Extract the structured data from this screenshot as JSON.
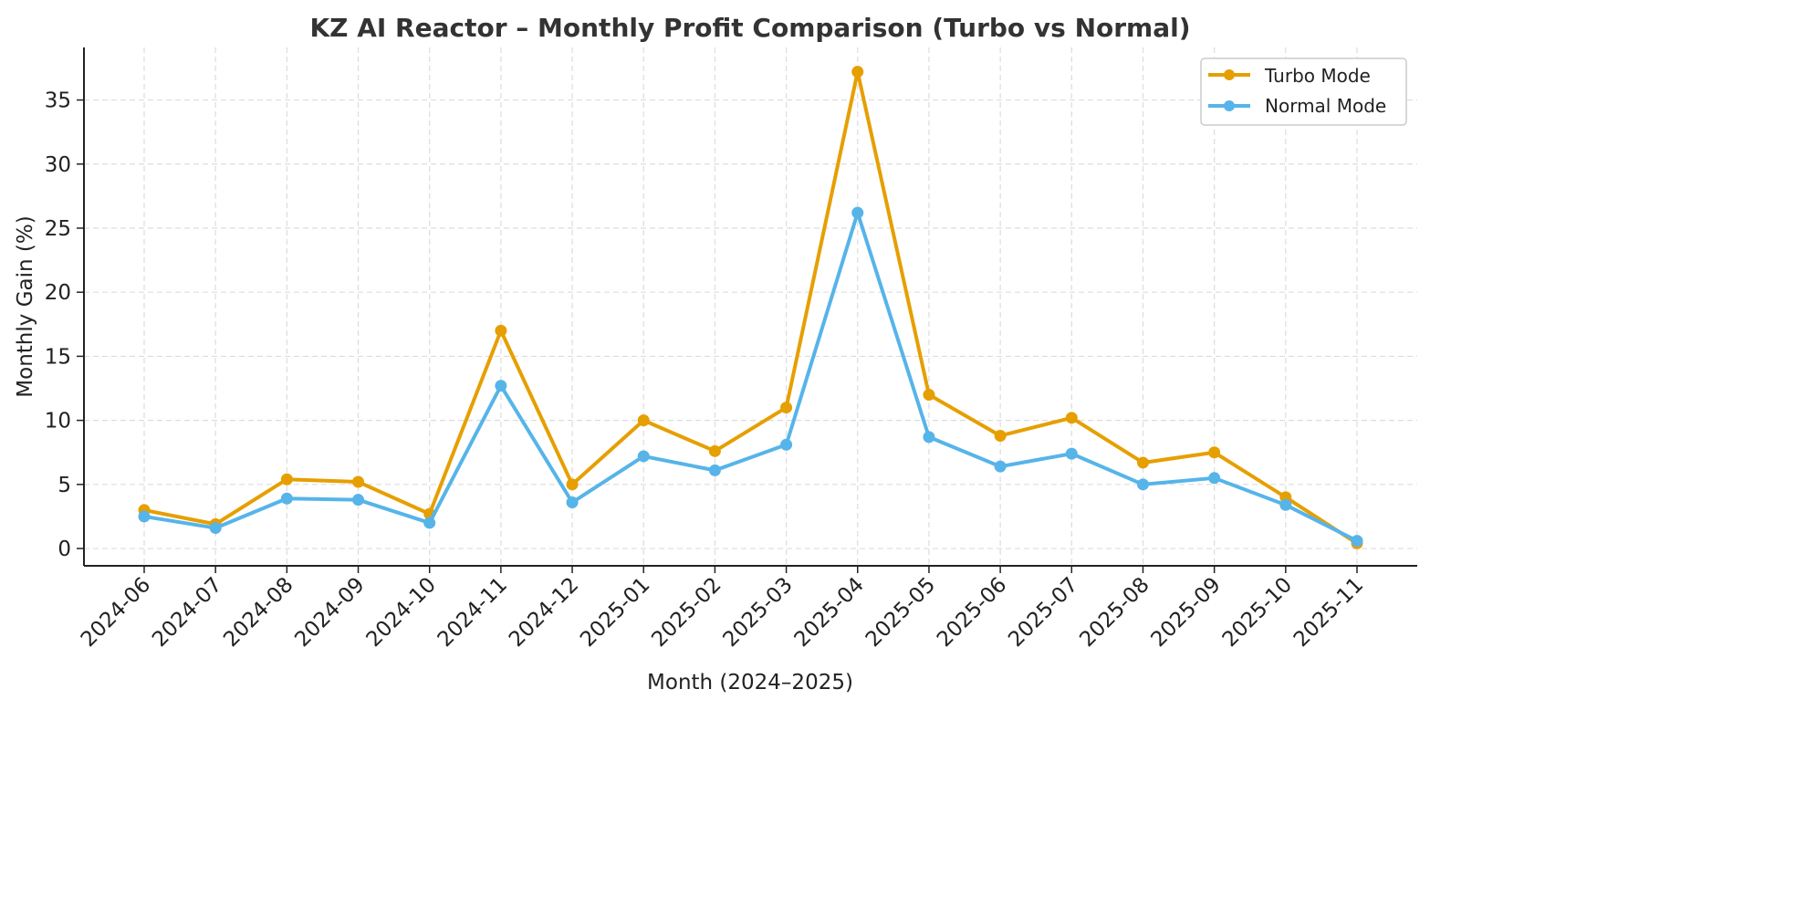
{
  "chart_data": {
    "type": "line",
    "title": "KZ AI Reactor – Monthly Profit Comparison (Turbo vs Normal)",
    "xlabel": "Month (2024–2025)",
    "ylabel": "Monthly Gain (%)",
    "categories": [
      "2024-06",
      "2024-07",
      "2024-08",
      "2024-09",
      "2024-10",
      "2024-11",
      "2024-12",
      "2025-01",
      "2025-02",
      "2025-03",
      "2025-04",
      "2025-05",
      "2025-06",
      "2025-07",
      "2025-08",
      "2025-09",
      "2025-10",
      "2025-11"
    ],
    "series": [
      {
        "name": "Turbo Mode",
        "color": "#E69F00",
        "values": [
          3.0,
          1.9,
          5.4,
          5.2,
          2.7,
          17.0,
          5.0,
          10.0,
          7.6,
          11.0,
          37.2,
          12.0,
          8.8,
          10.2,
          6.7,
          7.5,
          4.0,
          0.4
        ]
      },
      {
        "name": "Normal Mode",
        "color": "#56B4E9",
        "values": [
          2.5,
          1.6,
          3.9,
          3.8,
          2.0,
          12.7,
          3.6,
          7.2,
          6.1,
          8.1,
          26.2,
          8.7,
          6.4,
          7.4,
          5.0,
          5.5,
          3.4,
          0.6
        ]
      }
    ],
    "yticks": [
      0,
      5,
      10,
      15,
      20,
      25,
      30,
      35
    ],
    "ylim": [
      -1.35,
      39.1
    ],
    "grid": true,
    "legend": "top-right"
  }
}
